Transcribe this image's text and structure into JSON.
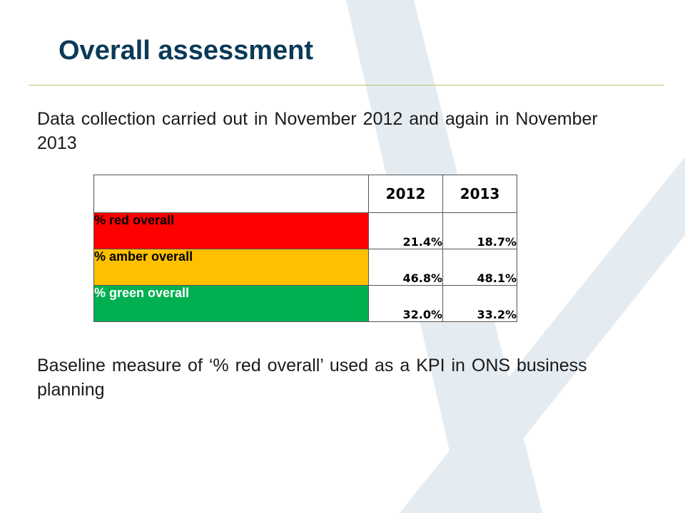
{
  "title": "Overall assessment",
  "intro": "Data collection carried out in November 2012 and again in November 2013",
  "table": {
    "corner": "",
    "years": [
      "2012",
      "2013"
    ],
    "rows": [
      {
        "label": "% red overall",
        "values": [
          "21.4%",
          "18.7%"
        ],
        "color": "#ff0000"
      },
      {
        "label": "% amber overall",
        "values": [
          "46.8%",
          "48.1%"
        ],
        "color": "#ffc000"
      },
      {
        "label": "% green overall",
        "values": [
          "32.0%",
          "33.2%"
        ],
        "color": "#00b050"
      }
    ]
  },
  "note": "Baseline measure of ‘% red overall’ used as a KPI in ONS business planning",
  "colors": {
    "title": "#0b3a57",
    "rule": "#b6c46a",
    "watermark": "#dfe7ee"
  }
}
